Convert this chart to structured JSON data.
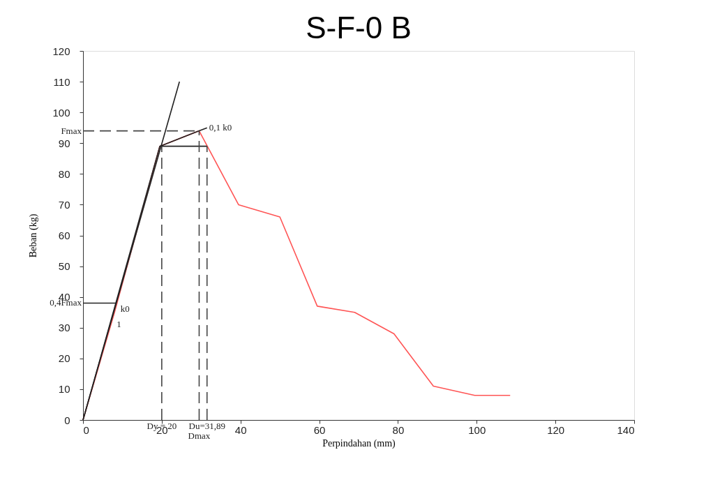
{
  "chart_data": {
    "type": "line",
    "title": "S-F-0 B",
    "xlabel": "Perpindahan (mm)",
    "ylabel": "Beban (kg)",
    "xlim": [
      0,
      140
    ],
    "xticks": [
      0,
      20,
      40,
      60,
      80,
      100,
      120,
      140
    ],
    "ylim": [
      0,
      120
    ],
    "yticks": [
      0,
      10,
      20,
      30,
      40,
      50,
      60,
      70,
      80,
      90,
      100,
      110,
      120
    ],
    "grid": false,
    "legend": false,
    "marker": "none",
    "series": [
      {
        "color": "#ff5555",
        "line_style": "solid",
        "x": [
          0,
          8,
          19.5,
          29.5,
          39.5,
          50,
          59.5,
          69,
          79,
          89,
          99.5,
          108.5
        ],
        "values": [
          0,
          35,
          89,
          94,
          70,
          66,
          37,
          35,
          28,
          11,
          8,
          8
        ]
      },
      {
        "color": "#222222",
        "line_style": "solid",
        "x": [
          0,
          24.5
        ],
        "values": [
          0,
          110
        ]
      },
      {
        "color": "#222222",
        "line_style": "solid",
        "x": [
          0,
          19.5,
          29.5,
          31.5
        ],
        "values": [
          0,
          89,
          94,
          95
        ]
      },
      {
        "color": "#222222",
        "line_style": "solid",
        "x": [
          19.5,
          31.5
        ],
        "values": [
          89,
          89
        ]
      },
      {
        "color": "#222222",
        "line_style": "solid",
        "x": [
          0,
          8.5
        ],
        "values": [
          38,
          38
        ]
      },
      {
        "color": "#444444",
        "line_style": "dashed",
        "x": [
          0,
          29.5
        ],
        "values": [
          94,
          94
        ]
      },
      {
        "color": "#444444",
        "line_style": "dashed",
        "x": [
          20,
          20
        ],
        "values": [
          0,
          89
        ]
      },
      {
        "color": "#444444",
        "line_style": "dashed",
        "x": [
          29.5,
          29.5
        ],
        "values": [
          0,
          94
        ]
      },
      {
        "color": "#444444",
        "line_style": "dashed",
        "x": [
          31.5,
          31.5
        ],
        "values": [
          0,
          89
        ]
      }
    ],
    "annotations": [
      {
        "text": "Fmax",
        "x": 0,
        "y": 94
      },
      {
        "text": "0,4Fmax",
        "x": 0,
        "y": 38
      },
      {
        "text": "k0",
        "x": 9,
        "y": 36
      },
      {
        "text": "1",
        "x": 8,
        "y": 31
      },
      {
        "text": "0,1 k0",
        "x": 31.5,
        "y": 95
      },
      {
        "text": "Dy = 20",
        "x": 20,
        "y": 0
      },
      {
        "text": "Dmax",
        "x": 29.5,
        "y": 0
      },
      {
        "text": "Du=31,89",
        "x": 31.5,
        "y": 0
      }
    ]
  }
}
